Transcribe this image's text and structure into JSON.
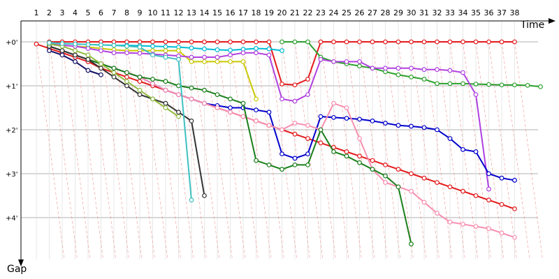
{
  "chart_data": {
    "type": "line",
    "title": "",
    "xlabel": "Time",
    "ylabel": "Gap",
    "x_ticks": [
      "1",
      "2",
      "3",
      "4",
      "5",
      "6",
      "7",
      "8",
      "9",
      "10",
      "11",
      "12",
      "13",
      "14",
      "15",
      "16",
      "17",
      "18",
      "19",
      "20",
      "21",
      "22",
      "23",
      "24",
      "25",
      "26",
      "27",
      "28",
      "29",
      "30",
      "31",
      "32",
      "33",
      "34",
      "35",
      "36",
      "37",
      "38"
    ],
    "y_ticks": [
      "+0'",
      "+1'",
      "+2'",
      "+3'",
      "+4'"
    ],
    "y_tick_values": [
      0,
      1,
      2,
      3,
      4
    ],
    "xlim": [
      0,
      39
    ],
    "ylim": [
      0,
      4.8
    ],
    "grid": true,
    "series": [
      {
        "color": "#e41a1c",
        "lap_start": 0,
        "values": [
          0.05,
          0.15,
          0.25,
          0.35,
          0.45,
          0.6,
          0.7,
          0.8,
          0.9,
          1.0,
          1.1,
          1.2,
          1.3,
          1.4,
          1.5,
          1.6,
          1.7,
          1.8,
          1.9,
          2.0,
          2.1,
          2.2,
          2.3,
          2.4,
          2.5,
          2.6,
          2.7,
          2.8,
          2.9,
          3.0,
          3.1,
          3.2,
          3.3,
          3.4,
          3.5,
          3.6,
          3.7,
          3.8
        ]
      },
      {
        "color": "#e41a1c",
        "lap_start": 1,
        "values": [
          0.0,
          0.0,
          0.0,
          0.0,
          0.0,
          0.0,
          0.0,
          0.0,
          0.0,
          0.0,
          0.0,
          0.0,
          0.0,
          0.0,
          0.0,
          0.0,
          0.0,
          0.0,
          0.96,
          0.98,
          0.85,
          0.0,
          0.0,
          0.0,
          0.0,
          0.0,
          0.0,
          0.0,
          0.0,
          0.0,
          0.0,
          0.0,
          0.0,
          0.0,
          0.0,
          0.0,
          0.0
        ]
      },
      {
        "color": "#00bcd4",
        "lap_start": 1,
        "values": [
          0.02,
          0.04,
          0.05,
          0.06,
          0.07,
          0.08,
          0.08,
          0.09,
          0.1,
          0.11,
          0.12,
          0.14,
          0.16,
          0.18,
          0.19,
          0.17,
          0.15,
          0.16,
          0.2
        ]
      },
      {
        "color": "#2ca02c",
        "lap_start": 19,
        "values": [
          0.0,
          0.0,
          0.0,
          0.35,
          0.45,
          0.5,
          0.55,
          0.6,
          0.68,
          0.75,
          0.8,
          0.85,
          0.95,
          0.95,
          0.95,
          0.96,
          0.97,
          0.98,
          0.98,
          0.99,
          1.02
        ]
      },
      {
        "color": "#c8c800",
        "lap_start": 1,
        "values": [
          0.05,
          0.08,
          0.1,
          0.12,
          0.15,
          0.18,
          0.2,
          0.2,
          0.2,
          0.2,
          0.2,
          0.45,
          0.45,
          0.45,
          0.45,
          0.45,
          1.3
        ]
      },
      {
        "color": "#b040e0",
        "lap_start": 1,
        "values": [
          0.05,
          0.08,
          0.1,
          0.15,
          0.2,
          0.25,
          0.25,
          0.26,
          0.28,
          0.3,
          0.32,
          0.35,
          0.35,
          0.35,
          0.3,
          0.25,
          0.25,
          0.3,
          1.3,
          1.35,
          1.2,
          0.4,
          0.45,
          0.45,
          0.45,
          0.6,
          0.6,
          0.6,
          0.6,
          0.63,
          0.63,
          0.65,
          0.7,
          1.2,
          3.35
        ]
      },
      {
        "color": "#0000cc",
        "lap_start": 1,
        "values": [
          0.1,
          0.2,
          0.3,
          0.4,
          0.5,
          0.6,
          0.7,
          0.8,
          0.95,
          1.1,
          1.2,
          1.3,
          1.4,
          1.45,
          1.5,
          1.5,
          1.55,
          1.6,
          2.55,
          2.65,
          2.55,
          1.7,
          1.72,
          1.74,
          1.76,
          1.8,
          1.85,
          1.9,
          1.92,
          1.95,
          2.0,
          2.2,
          2.45,
          2.5,
          3.0,
          3.1,
          3.15
        ]
      },
      {
        "color": "#f78fb0",
        "lap_start": 1,
        "values": [
          0.1,
          0.2,
          0.3,
          0.4,
          0.5,
          0.6,
          0.7,
          0.8,
          0.95,
          1.1,
          1.2,
          1.3,
          1.4,
          1.5,
          1.6,
          1.7,
          1.8,
          1.9,
          2.0,
          1.85,
          1.9,
          2.0,
          1.4,
          1.5,
          2.2,
          2.9,
          3.2,
          3.3,
          3.4,
          3.65,
          3.9,
          4.1,
          4.15,
          4.2,
          4.25,
          4.35,
          4.45
        ]
      },
      {
        "color": "#1a7f1a",
        "lap_start": 1,
        "values": [
          0.1,
          0.2,
          0.3,
          0.4,
          0.5,
          0.6,
          0.7,
          0.8,
          0.85,
          0.9,
          1.0,
          1.05,
          1.1,
          1.2,
          1.3,
          1.4,
          2.7,
          2.8,
          2.9,
          2.8,
          2.8,
          2.0,
          2.5,
          2.6,
          2.75,
          2.9,
          3.05,
          3.3,
          4.6
        ]
      },
      {
        "color": "#333333",
        "lap_start": 1,
        "values": [
          0.1,
          0.2,
          0.3,
          0.4,
          0.6,
          0.8,
          1.0,
          1.2,
          1.3,
          1.4,
          1.6,
          1.8,
          3.5
        ]
      },
      {
        "color": "#111166",
        "lap_start": 1,
        "values": [
          0.2,
          0.3,
          0.45,
          0.65,
          0.75
        ]
      },
      {
        "color": "#8fbc3f",
        "lap_start": 1,
        "values": [
          0.05,
          0.1,
          0.2,
          0.3,
          0.5,
          0.7,
          0.9,
          1.1,
          1.3,
          1.5,
          1.7
        ]
      },
      {
        "color": "#40c0c0",
        "lap_start": 1,
        "values": [
          0.02,
          0.04,
          0.05,
          0.06,
          0.07,
          0.08,
          0.1,
          0.12,
          0.3,
          0.35,
          0.4,
          3.6
        ]
      }
    ]
  }
}
